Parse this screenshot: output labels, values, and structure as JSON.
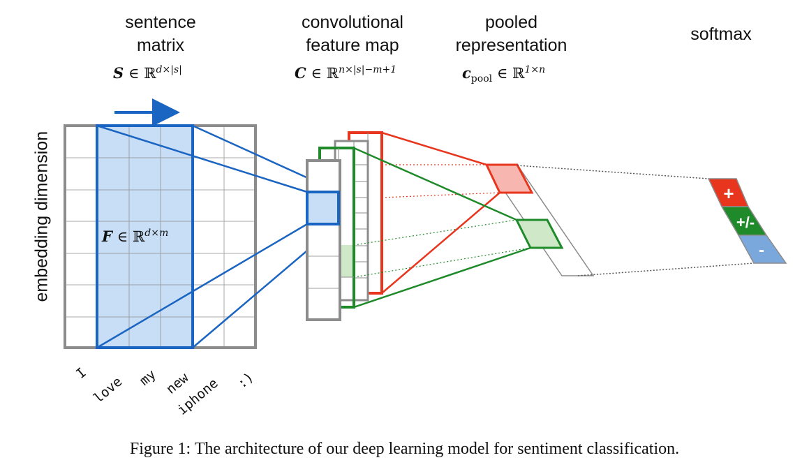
{
  "headers": {
    "sentence_matrix": [
      "sentence",
      "matrix"
    ],
    "conv_map": [
      "convolutional",
      "feature map"
    ],
    "pooled": [
      "pooled",
      "representation"
    ],
    "softmax": "softmax"
  },
  "math": {
    "S_symbol": "S",
    "S_set": "∈ ℝ",
    "S_sup": "d×|s|",
    "C_symbol": "C",
    "C_set": "∈ ℝ",
    "C_sup": "n×|s|−m+1",
    "c_symbol": "c",
    "c_sub": "pool",
    "c_set": "∈ ℝ",
    "c_sup": "1×n",
    "F_symbol": "F",
    "F_set": "∈ ℝ",
    "F_sup": "d×m"
  },
  "axis_label": "embedding dimension",
  "words": [
    "I",
    "love",
    "my",
    "new",
    "iphone",
    ":)"
  ],
  "softmax_labels": [
    "+",
    "+/-",
    "-"
  ],
  "caption": "Figure 1: The architecture of our deep learning model for sentiment classification.",
  "colors": {
    "grid": "#8c8c8c",
    "blue": "#1a64c2",
    "blue_fill": "#c8def6",
    "red": "#e8351e",
    "red_fill": "#f7b7b0",
    "green": "#1f8a2a",
    "green_fill": "#cfe8c8",
    "softmax_blue": "#7aa7dc"
  }
}
